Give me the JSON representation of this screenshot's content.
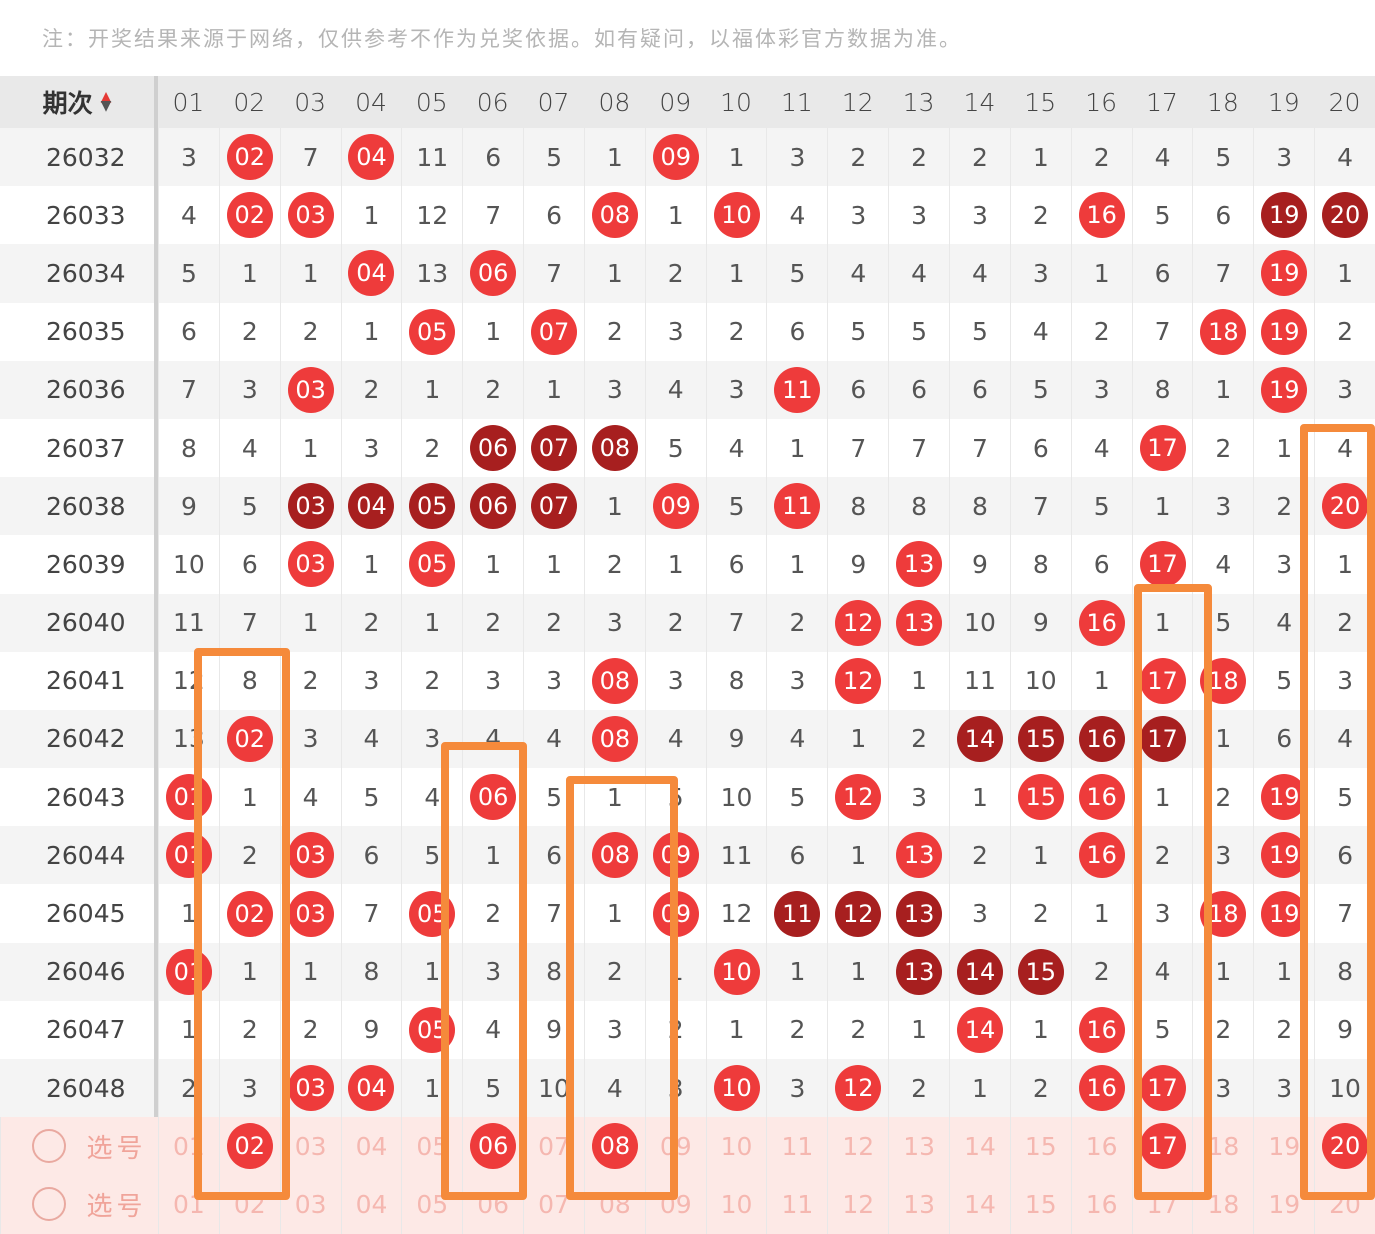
{
  "notice": "注：开奖结果来源于网络，仅供参考不作为兑奖依据。如有疑问，以福体彩官方数据为准。",
  "header": {
    "issue_label": "期次",
    "numbers": [
      "01",
      "02",
      "03",
      "04",
      "05",
      "06",
      "07",
      "08",
      "09",
      "10",
      "11",
      "12",
      "13",
      "14",
      "15",
      "16",
      "17",
      "18",
      "19",
      "20"
    ]
  },
  "rows": [
    {
      "issue": "26032",
      "cells": [
        "3",
        "02",
        "7",
        "04",
        "11",
        "6",
        "5",
        "1",
        "09",
        "1",
        "3",
        "2",
        "2",
        "2",
        "1",
        "2",
        "4",
        "5",
        "3",
        "4"
      ],
      "hits": [
        2,
        4,
        9
      ],
      "dark": []
    },
    {
      "issue": "26033",
      "cells": [
        "4",
        "02",
        "03",
        "1",
        "12",
        "7",
        "6",
        "08",
        "1",
        "10",
        "4",
        "3",
        "3",
        "3",
        "2",
        "16",
        "5",
        "6",
        "19",
        "20"
      ],
      "hits": [
        2,
        3,
        8,
        10,
        16
      ],
      "dark": [
        19,
        20
      ]
    },
    {
      "issue": "26034",
      "cells": [
        "5",
        "1",
        "1",
        "04",
        "13",
        "06",
        "7",
        "1",
        "2",
        "1",
        "5",
        "4",
        "4",
        "4",
        "3",
        "1",
        "6",
        "7",
        "19",
        "1"
      ],
      "hits": [
        4,
        6,
        19
      ],
      "dark": []
    },
    {
      "issue": "26035",
      "cells": [
        "6",
        "2",
        "2",
        "1",
        "05",
        "1",
        "07",
        "2",
        "3",
        "2",
        "6",
        "5",
        "5",
        "5",
        "4",
        "2",
        "7",
        "18",
        "19",
        "2"
      ],
      "hits": [
        5,
        7,
        18,
        19
      ],
      "dark": []
    },
    {
      "issue": "26036",
      "cells": [
        "7",
        "3",
        "03",
        "2",
        "1",
        "2",
        "1",
        "3",
        "4",
        "3",
        "11",
        "6",
        "6",
        "6",
        "5",
        "3",
        "8",
        "1",
        "19",
        "3"
      ],
      "hits": [
        3,
        11,
        19
      ],
      "dark": []
    },
    {
      "issue": "26037",
      "cells": [
        "8",
        "4",
        "1",
        "3",
        "2",
        "06",
        "07",
        "08",
        "5",
        "4",
        "1",
        "7",
        "7",
        "7",
        "6",
        "4",
        "17",
        "2",
        "1",
        "4"
      ],
      "hits": [
        17
      ],
      "dark": [
        6,
        7,
        8
      ]
    },
    {
      "issue": "26038",
      "cells": [
        "9",
        "5",
        "03",
        "04",
        "05",
        "06",
        "07",
        "1",
        "09",
        "5",
        "11",
        "8",
        "8",
        "8",
        "7",
        "5",
        "1",
        "3",
        "2",
        "20"
      ],
      "hits": [
        9,
        11,
        20
      ],
      "dark": [
        3,
        4,
        5,
        6,
        7
      ]
    },
    {
      "issue": "26039",
      "cells": [
        "10",
        "6",
        "03",
        "1",
        "05",
        "1",
        "1",
        "2",
        "1",
        "6",
        "1",
        "9",
        "13",
        "9",
        "8",
        "6",
        "17",
        "4",
        "3",
        "1"
      ],
      "hits": [
        3,
        5,
        13,
        17
      ],
      "dark": []
    },
    {
      "issue": "26040",
      "cells": [
        "11",
        "7",
        "1",
        "2",
        "1",
        "2",
        "2",
        "3",
        "2",
        "7",
        "2",
        "12",
        "13",
        "10",
        "9",
        "16",
        "1",
        "5",
        "4",
        "2"
      ],
      "hits": [
        12,
        13,
        16
      ],
      "dark": []
    },
    {
      "issue": "26041",
      "cells": [
        "12",
        "8",
        "2",
        "3",
        "2",
        "3",
        "3",
        "08",
        "3",
        "8",
        "3",
        "12",
        "1",
        "11",
        "10",
        "1",
        "17",
        "18",
        "5",
        "3"
      ],
      "hits": [
        8,
        12,
        17,
        18
      ],
      "dark": []
    },
    {
      "issue": "26042",
      "cells": [
        "13",
        "02",
        "3",
        "4",
        "3",
        "4",
        "4",
        "08",
        "4",
        "9",
        "4",
        "1",
        "2",
        "14",
        "15",
        "16",
        "17",
        "1",
        "6",
        "4"
      ],
      "hits": [
        2,
        8
      ],
      "dark": [
        14,
        15,
        16,
        17
      ]
    },
    {
      "issue": "26043",
      "cells": [
        "01",
        "1",
        "4",
        "5",
        "4",
        "06",
        "5",
        "1",
        "5",
        "10",
        "5",
        "12",
        "3",
        "1",
        "15",
        "16",
        "1",
        "2",
        "19",
        "5"
      ],
      "hits": [
        1,
        6,
        12,
        15,
        16,
        19
      ],
      "dark": []
    },
    {
      "issue": "26044",
      "cells": [
        "01",
        "2",
        "03",
        "6",
        "5",
        "1",
        "6",
        "08",
        "09",
        "11",
        "6",
        "1",
        "13",
        "2",
        "1",
        "16",
        "2",
        "3",
        "19",
        "6"
      ],
      "hits": [
        1,
        3,
        8,
        9,
        13,
        16,
        19
      ],
      "dark": []
    },
    {
      "issue": "26045",
      "cells": [
        "1",
        "02",
        "03",
        "7",
        "05",
        "2",
        "7",
        "1",
        "09",
        "12",
        "11",
        "12",
        "13",
        "3",
        "2",
        "1",
        "3",
        "18",
        "19",
        "7"
      ],
      "hits": [
        2,
        3,
        5,
        9,
        18,
        19
      ],
      "dark": [
        11,
        12,
        13
      ]
    },
    {
      "issue": "26046",
      "cells": [
        "01",
        "1",
        "1",
        "8",
        "1",
        "3",
        "8",
        "2",
        "1",
        "10",
        "1",
        "1",
        "13",
        "14",
        "15",
        "2",
        "4",
        "1",
        "1",
        "8"
      ],
      "hits": [
        1,
        10
      ],
      "dark": [
        13,
        14,
        15
      ]
    },
    {
      "issue": "26047",
      "cells": [
        "1",
        "2",
        "2",
        "9",
        "05",
        "4",
        "9",
        "3",
        "2",
        "1",
        "2",
        "2",
        "1",
        "14",
        "1",
        "16",
        "5",
        "2",
        "2",
        "9"
      ],
      "hits": [
        5,
        14,
        16
      ],
      "dark": []
    },
    {
      "issue": "26048",
      "cells": [
        "2",
        "3",
        "03",
        "04",
        "1",
        "5",
        "10",
        "4",
        "3",
        "10",
        "3",
        "12",
        "2",
        "1",
        "2",
        "16",
        "17",
        "3",
        "3",
        "10"
      ],
      "hits": [
        3,
        4,
        10,
        12,
        16,
        17
      ],
      "dark": []
    }
  ],
  "select_rows": [
    {
      "label": "选号",
      "cells": [
        "01",
        "02",
        "03",
        "04",
        "05",
        "06",
        "07",
        "08",
        "09",
        "10",
        "11",
        "12",
        "13",
        "14",
        "15",
        "16",
        "17",
        "18",
        "19",
        "20"
      ],
      "picked": [
        2,
        6,
        8,
        17,
        20
      ]
    },
    {
      "label": "选号",
      "cells": [
        "01",
        "02",
        "03",
        "04",
        "05",
        "06",
        "07",
        "08",
        "09",
        "10",
        "11",
        "12",
        "13",
        "14",
        "15",
        "16",
        "17",
        "18",
        "19",
        "20"
      ],
      "picked": []
    }
  ],
  "colors": {
    "hit": "#ee3b3b",
    "repeat": "#a71f1f",
    "highlight": "#f58a3b",
    "select_bg": "#fde9e6"
  }
}
